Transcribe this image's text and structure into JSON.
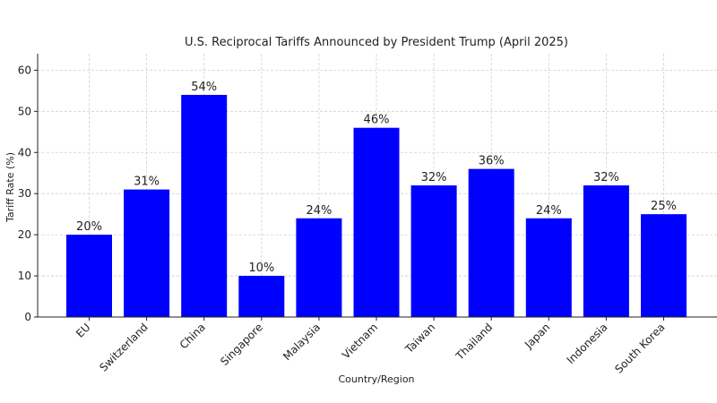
{
  "chart_data": {
    "type": "bar",
    "title": "U.S. Reciprocal Tariffs Announced by President Trump (April 2025)",
    "xlabel": "Country/Region",
    "ylabel": "Tariff Rate (%)",
    "categories": [
      "EU",
      "Switzerland",
      "China",
      "Singapore",
      "Malaysia",
      "Vietnam",
      "Taiwan",
      "Thailand",
      "Japan",
      "Indonesia",
      "South Korea"
    ],
    "values": [
      20,
      31,
      54,
      10,
      24,
      46,
      32,
      36,
      24,
      32,
      25
    ],
    "data_labels": [
      "20%",
      "31%",
      "54%",
      "10%",
      "24%",
      "46%",
      "32%",
      "36%",
      "24%",
      "32%",
      "25%"
    ],
    "ylim": [
      0,
      64
    ],
    "yticks": [
      0,
      10,
      20,
      30,
      40,
      50,
      60
    ],
    "grid": true,
    "bar_color": "#0000ff"
  }
}
